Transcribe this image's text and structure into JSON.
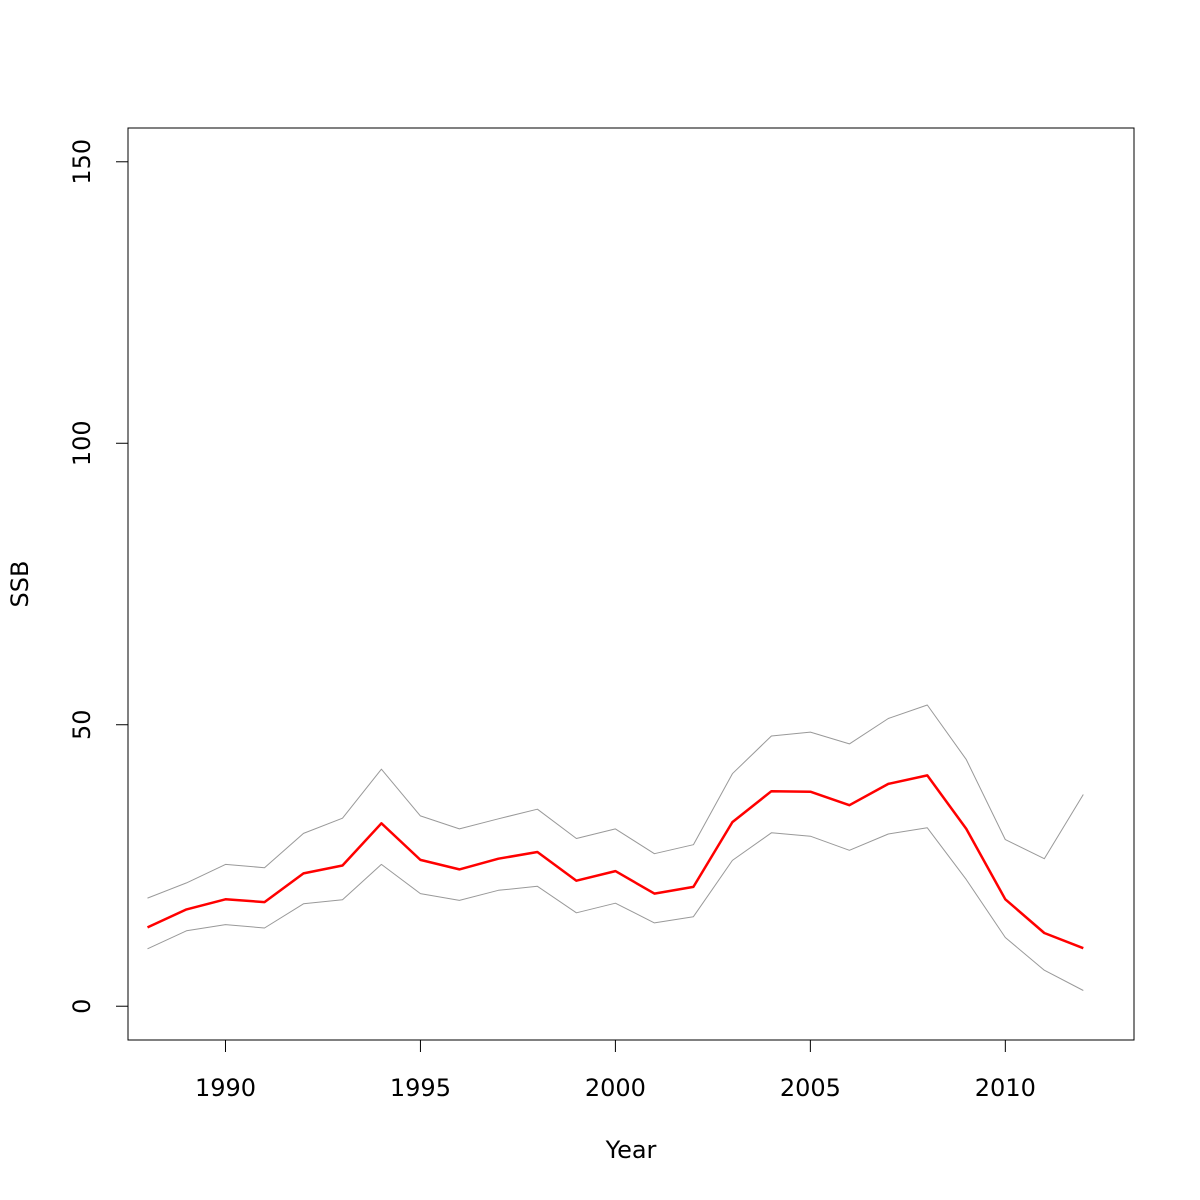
{
  "chart_data": {
    "type": "line",
    "title": "",
    "xlabel": "Year",
    "ylabel": "SSB",
    "xlim": [
      1987.5,
      2013.3
    ],
    "ylim": [
      -6,
      156
    ],
    "xticks": [
      1990,
      1995,
      2000,
      2005,
      2010
    ],
    "yticks": [
      0,
      50,
      100,
      150
    ],
    "x": [
      1988,
      1989,
      1990,
      1991,
      1992,
      1993,
      1994,
      1995,
      1996,
      1997,
      1998,
      1999,
      2000,
      2001,
      2002,
      2003,
      2004,
      2005,
      2006,
      2007,
      2008,
      2009,
      2010,
      2011,
      2012
    ],
    "series": [
      {
        "role": "estimate",
        "color": "#ff0000",
        "values": [
          14.0,
          17.2,
          19.0,
          18.5,
          23.6,
          25.0,
          32.5,
          26.0,
          24.3,
          26.2,
          27.4,
          22.3,
          24.0,
          20.0,
          21.2,
          32.7,
          38.2,
          38.1,
          35.7,
          39.5,
          41.0,
          31.5,
          19.0,
          13.0,
          10.3
        ]
      },
      {
        "role": "upper",
        "color": "#999999",
        "values": [
          19.2,
          21.9,
          25.2,
          24.6,
          30.7,
          33.4,
          42.1,
          33.8,
          31.5,
          33.3,
          35.0,
          29.8,
          31.5,
          27.1,
          28.7,
          41.3,
          48.0,
          48.7,
          46.6,
          51.1,
          53.5,
          43.8,
          29.6,
          26.2,
          37.6
        ]
      },
      {
        "role": "lower",
        "color": "#999999",
        "values": [
          10.2,
          13.4,
          14.5,
          13.9,
          18.2,
          18.9,
          25.2,
          20.0,
          18.8,
          20.6,
          21.3,
          16.6,
          18.3,
          14.8,
          15.9,
          25.9,
          30.8,
          30.2,
          27.7,
          30.6,
          31.7,
          22.5,
          12.2,
          6.4,
          2.8
        ]
      }
    ],
    "grid": false,
    "legend": false
  }
}
